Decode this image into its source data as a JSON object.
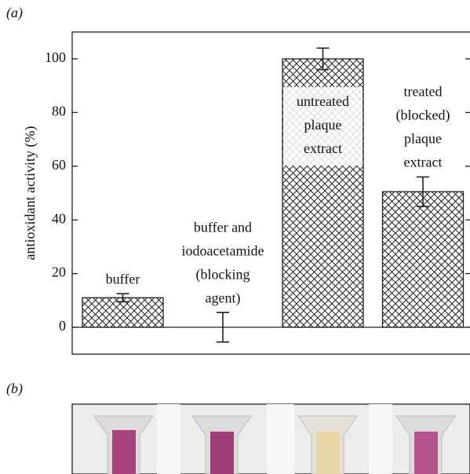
{
  "chart_data": {
    "type": "bar",
    "panel_labels": [
      "(a)",
      "(b)"
    ],
    "ylabel": "antioxidant activity (%)",
    "categories": [
      [
        "buffer"
      ],
      [
        "buffer and",
        "iodoacetamide",
        "(blocking",
        "agent)"
      ],
      [
        "untreated",
        "plaque",
        "extract"
      ],
      [
        "treated",
        "(blocked)",
        "plaque",
        "extract"
      ]
    ],
    "values": [
      11,
      0,
      100,
      50.5
    ],
    "errors": [
      1.5,
      5.5,
      4,
      5.5
    ],
    "ylim": [
      -10,
      110
    ],
    "yticks": [
      0,
      20,
      40,
      60,
      80,
      100
    ],
    "color": "#222222",
    "grid": false
  }
}
